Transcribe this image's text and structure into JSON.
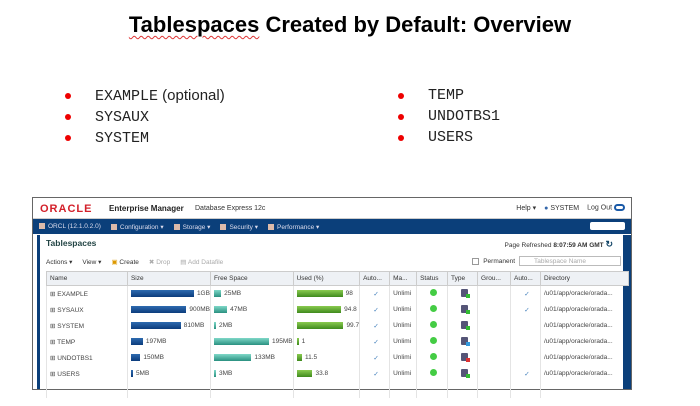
{
  "title": {
    "word1": "Tablespaces",
    "rest": " Created by Default: Overview"
  },
  "bullets_left": [
    {
      "mono": "EXAMPLE",
      "extra": " (optional)"
    },
    {
      "mono": "SYSAUX",
      "extra": ""
    },
    {
      "mono": "SYSTEM",
      "extra": ""
    }
  ],
  "bullets_right": [
    "TEMP",
    "UNDOTBS1",
    "USERS"
  ],
  "em": {
    "logo": "ORACLE",
    "product": "Enterprise Manager",
    "edition": "Database Express 12c",
    "help": "Help ▾",
    "user": "SYSTEM",
    "logout": "Log Out",
    "nav": [
      "ORCL (12.1.0.2.0)",
      "Configuration ▾",
      "Storage ▾",
      "Security ▾",
      "Performance ▾"
    ],
    "page_title": "Tablespaces",
    "refreshed_label": "Page Refreshed",
    "refreshed_time": "8:07:59 AM GMT",
    "toolbar": {
      "actions": "Actions ▾",
      "view": "View ▾",
      "create": "Create",
      "drop": "Drop",
      "add_datafile": "Add Datafile",
      "permanent": "Permanent",
      "search_placeholder": "Tablespace Name"
    },
    "columns": [
      "Name",
      "Size",
      "Free Space",
      "Used (%)",
      "Auto...",
      "Ma...",
      "Status",
      "Type",
      "Grou...",
      "Auto...",
      "Directory"
    ],
    "rows": [
      {
        "name": "EXAMPLE",
        "size": "1GB",
        "size_frac": 1.0,
        "free": "25MB",
        "free_frac": 0.13,
        "used": "98",
        "used_pct": 98,
        "auto": "✓",
        "max": "Unlimi",
        "type": "green",
        "auto2": "✓",
        "dir": "/u01/app/oracle/orada..."
      },
      {
        "name": "SYSAUX",
        "size": "900MB",
        "size_frac": 0.88,
        "free": "47MB",
        "free_frac": 0.24,
        "used": "94.8",
        "used_pct": 94.8,
        "auto": "✓",
        "max": "Unlimi",
        "type": "green",
        "auto2": "✓",
        "dir": "/u01/app/oracle/orada..."
      },
      {
        "name": "SYSTEM",
        "size": "810MB",
        "size_frac": 0.79,
        "free": "2MB",
        "free_frac": 0.01,
        "used": "99.7",
        "used_pct": 99.7,
        "auto": "✓",
        "max": "Unlimi",
        "type": "green",
        "auto2": "",
        "dir": "/u01/app/oracle/orada..."
      },
      {
        "name": "TEMP",
        "size": "197MB",
        "size_frac": 0.19,
        "free": "195MB",
        "free_frac": 1.0,
        "used": "1",
        "used_pct": 1,
        "auto": "✓",
        "max": "Unlimi",
        "type": "blue",
        "auto2": "",
        "dir": "/u01/app/oracle/orada..."
      },
      {
        "name": "UNDOTBS1",
        "size": "150MB",
        "size_frac": 0.15,
        "free": "133MB",
        "free_frac": 0.68,
        "used": "11.5",
        "used_pct": 11.5,
        "auto": "✓",
        "max": "Unlimi",
        "type": "red",
        "auto2": "",
        "dir": "/u01/app/oracle/orada..."
      },
      {
        "name": "USERS",
        "size": "5MB",
        "size_frac": 0.01,
        "free": "3MB",
        "free_frac": 0.015,
        "used": "33.8",
        "used_pct": 33.8,
        "auto": "✓",
        "max": "Unlimi",
        "type": "green",
        "auto2": "✓",
        "dir": "/u01/app/oracle/orada..."
      }
    ]
  }
}
